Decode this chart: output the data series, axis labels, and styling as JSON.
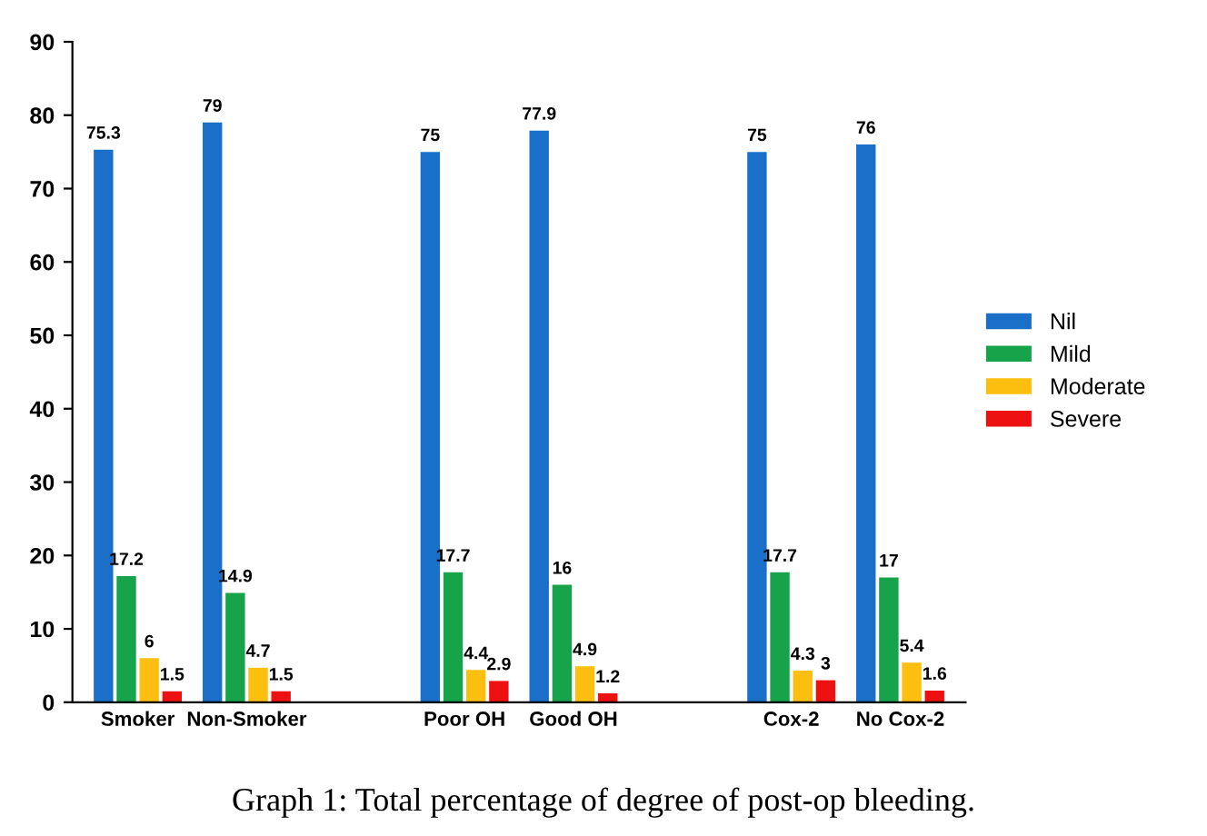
{
  "chart_data": {
    "type": "bar",
    "title": "Graph 1: Total percentage of degree of post-op bleeding.",
    "categories": [
      "Smoker",
      "Non-Smoker",
      null,
      "Poor OH",
      "Good OH",
      null,
      "Cox-2",
      "No Cox-2"
    ],
    "series": [
      {
        "name": "Nil",
        "color": "#1a6fc9",
        "values": [
          75.3,
          79,
          null,
          75,
          77.9,
          null,
          75,
          76
        ]
      },
      {
        "name": "Mild",
        "color": "#16a34a",
        "values": [
          17.2,
          14.9,
          null,
          17.7,
          16,
          null,
          17.7,
          17
        ]
      },
      {
        "name": "Moderate",
        "color": "#fcbf0f",
        "values": [
          6,
          4.7,
          null,
          4.4,
          4.9,
          null,
          4.3,
          5.4
        ]
      },
      {
        "name": "Severe",
        "color": "#ee1111",
        "values": [
          1.5,
          1.5,
          null,
          2.9,
          1.2,
          null,
          3,
          1.6
        ]
      }
    ],
    "ylim": [
      0,
      90
    ],
    "yticks": [
      0,
      10,
      20,
      30,
      40,
      50,
      60,
      70,
      80,
      90
    ],
    "data_labels": true,
    "legend": "right",
    "grid": false
  }
}
